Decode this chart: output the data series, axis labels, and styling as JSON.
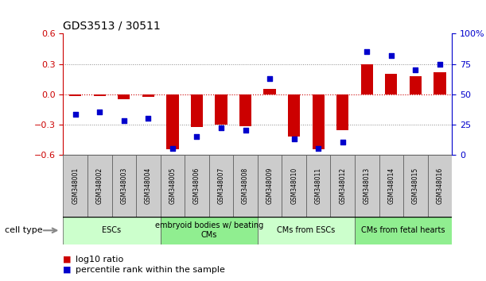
{
  "title": "GDS3513 / 30511",
  "samples": [
    "GSM348001",
    "GSM348002",
    "GSM348003",
    "GSM348004",
    "GSM348005",
    "GSM348006",
    "GSM348007",
    "GSM348008",
    "GSM348009",
    "GSM348010",
    "GSM348011",
    "GSM348012",
    "GSM348013",
    "GSM348014",
    "GSM348015",
    "GSM348016"
  ],
  "log10_ratio": [
    -0.02,
    -0.02,
    -0.05,
    -0.03,
    -0.55,
    -0.33,
    -0.3,
    -0.32,
    0.05,
    -0.42,
    -0.55,
    -0.36,
    0.3,
    0.2,
    0.18,
    0.22
  ],
  "percentile_rank": [
    33,
    35,
    28,
    30,
    5,
    15,
    22,
    20,
    63,
    13,
    5,
    10,
    85,
    82,
    70,
    75
  ],
  "cell_type_groups": [
    {
      "label": "ESCs",
      "start": 0,
      "end": 3
    },
    {
      "label": "embryoid bodies w/ beating\nCMs",
      "start": 4,
      "end": 7
    },
    {
      "label": "CMs from ESCs",
      "start": 8,
      "end": 11
    },
    {
      "label": "CMs from fetal hearts",
      "start": 12,
      "end": 15
    }
  ],
  "group_colors": [
    "#CCFFCC",
    "#90EE90",
    "#CCFFCC",
    "#90EE90"
  ],
  "bar_color": "#CC0000",
  "dot_color": "#0000CC",
  "left_axis_color": "#CC0000",
  "right_axis_color": "#0000CC",
  "ylim_left": [
    -0.6,
    0.6
  ],
  "ylim_right": [
    0,
    100
  ],
  "yticks_left": [
    -0.6,
    -0.3,
    0.0,
    0.3,
    0.6
  ],
  "yticks_right": [
    0,
    25,
    50,
    75,
    100
  ],
  "ytick_labels_right": [
    "0",
    "25",
    "50",
    "75",
    "100%"
  ],
  "bg_color": "#FFFFFF",
  "sample_box_color": "#CCCCCC",
  "legend_items": [
    {
      "color": "#CC0000",
      "label": "log10 ratio"
    },
    {
      "color": "#0000CC",
      "label": "percentile rank within the sample"
    }
  ]
}
